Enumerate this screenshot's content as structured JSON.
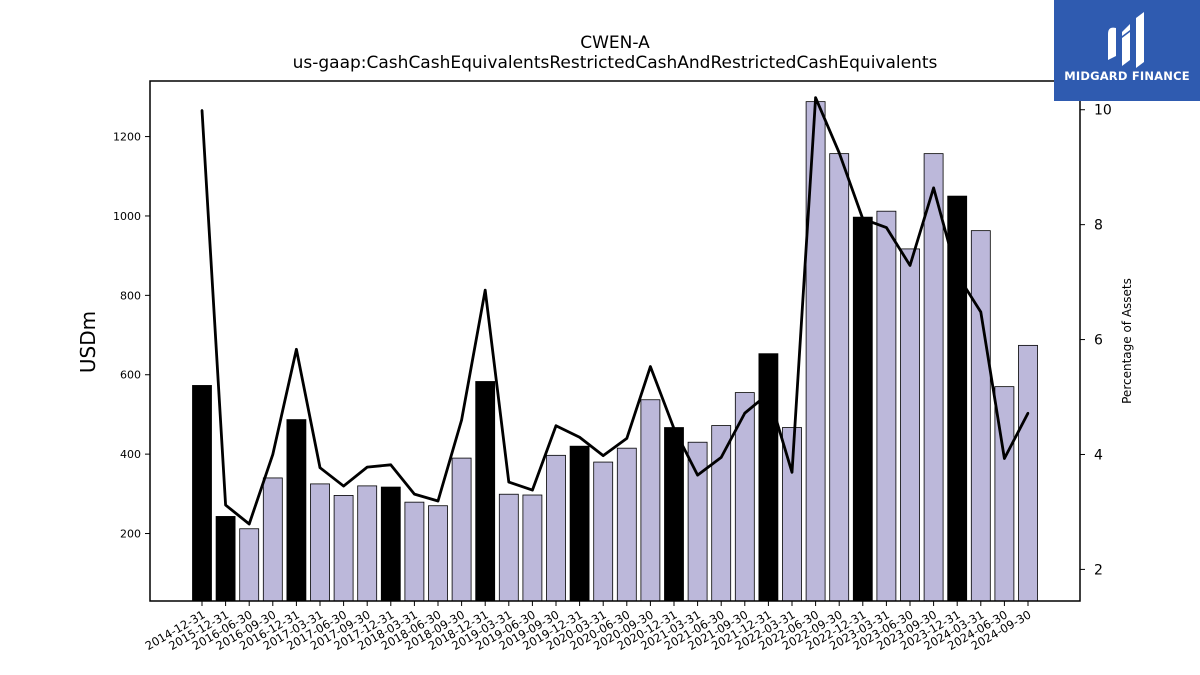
{
  "chart_data": {
    "type": "bar",
    "title": "CWEN-A",
    "subtitle": "us-gaap:CashCashEquivalentsRestrictedCashAndRestrictedCashEquivalents",
    "ylabel": "USDm",
    "y2label": "Percentage of Assets",
    "ylim": [
      30,
      1340
    ],
    "y2lim": [
      1.45,
      10.5
    ],
    "yticks": [
      200,
      400,
      600,
      800,
      1000,
      1200
    ],
    "y2ticks": [
      2,
      4,
      6,
      8,
      10
    ],
    "grid": false,
    "categories": [
      "2014-12-31",
      "2015-12-31",
      "2016-06-30",
      "2016-09-30",
      "2016-12-31",
      "2017-03-31",
      "2017-06-30",
      "2017-09-30",
      "2017-12-31",
      "2018-03-31",
      "2018-06-30",
      "2018-09-30",
      "2018-12-31",
      "2019-03-31",
      "2019-06-30",
      "2019-09-30",
      "2019-12-31",
      "2020-03-31",
      "2020-06-30",
      "2020-09-30",
      "2020-12-31",
      "2021-03-31",
      "2021-06-30",
      "2021-09-30",
      "2021-12-31",
      "2022-03-31",
      "2022-06-30",
      "2022-09-30",
      "2022-12-31",
      "2023-03-31",
      "2023-06-30",
      "2023-09-30",
      "2023-12-31",
      "2024-03-31",
      "2024-06-30",
      "2024-09-30"
    ],
    "series": [
      {
        "kind": "bar",
        "axis": "left",
        "values": [
          573,
          243,
          212,
          340,
          487,
          325,
          296,
          320,
          317,
          279,
          270,
          390,
          583,
          299,
          297,
          397,
          420,
          380,
          415,
          537,
          467,
          430,
          472,
          555,
          653,
          467,
          1288,
          1157,
          997,
          1012,
          917,
          1157,
          1050,
          963,
          570,
          674
        ],
        "annual_flags": [
          true,
          true,
          false,
          false,
          true,
          false,
          false,
          false,
          true,
          false,
          false,
          false,
          true,
          false,
          false,
          false,
          true,
          false,
          false,
          false,
          true,
          false,
          false,
          false,
          true,
          false,
          false,
          false,
          true,
          false,
          false,
          false,
          true,
          false,
          false,
          false
        ]
      },
      {
        "kind": "line",
        "axis": "right",
        "values": [
          9.99,
          3.12,
          2.79,
          4.0,
          5.83,
          3.77,
          3.45,
          3.78,
          3.82,
          3.31,
          3.19,
          4.6,
          6.86,
          3.52,
          3.38,
          4.5,
          4.3,
          3.98,
          4.28,
          5.53,
          4.45,
          3.64,
          3.95,
          4.72,
          5.06,
          3.69,
          10.21,
          9.25,
          8.1,
          7.95,
          7.29,
          8.64,
          7.13,
          6.48,
          3.93,
          4.72
        ]
      }
    ],
    "colors": {
      "annual_bar": "#000000",
      "quarter_bar": "#bcb8da",
      "bar_edge": "#000000",
      "line": "#000000"
    }
  },
  "logo": {
    "text": "MIDGARD FINANCE",
    "icon": "midgard-logo-icon",
    "background": "#2f5bb0"
  }
}
